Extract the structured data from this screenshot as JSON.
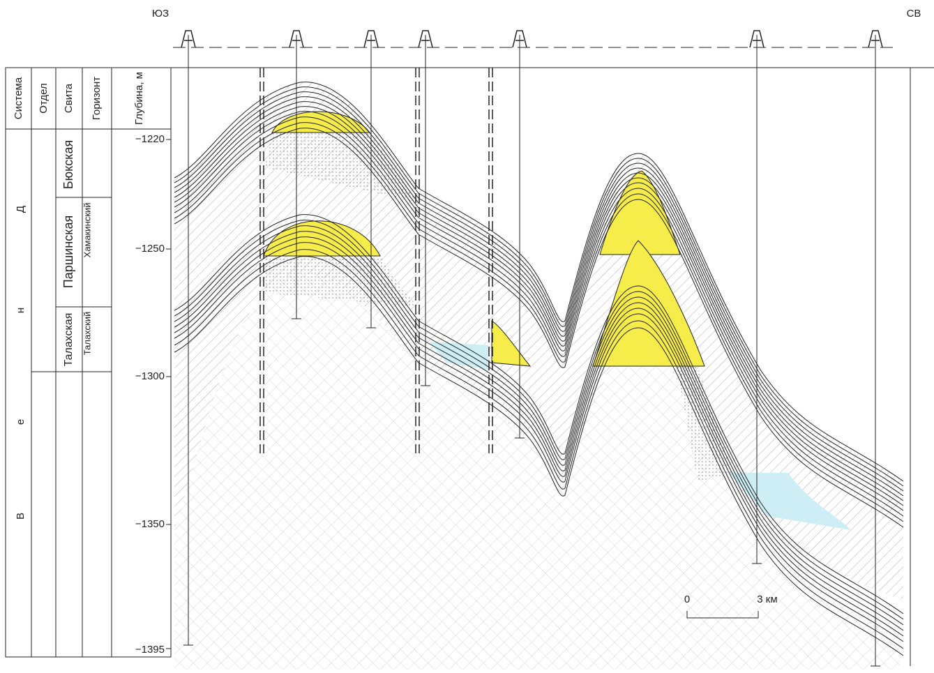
{
  "header": {
    "left_direction": "ЮЗ",
    "right_direction": "СВ"
  },
  "columns": [
    "Система",
    "Отдел",
    "Свита",
    "Горизонт",
    "Глубина, м"
  ],
  "system_letters": [
    "Д",
    "н",
    "е",
    "В"
  ],
  "formations": [
    "Бюкская",
    "Паршинская",
    "Талахская"
  ],
  "horizons": [
    "Хамакинский",
    "Талахский"
  ],
  "depths": [
    "−1220",
    "−1250",
    "−1300",
    "−1350",
    "−1395"
  ],
  "scale": {
    "start": "0",
    "end": "3 км"
  }
}
